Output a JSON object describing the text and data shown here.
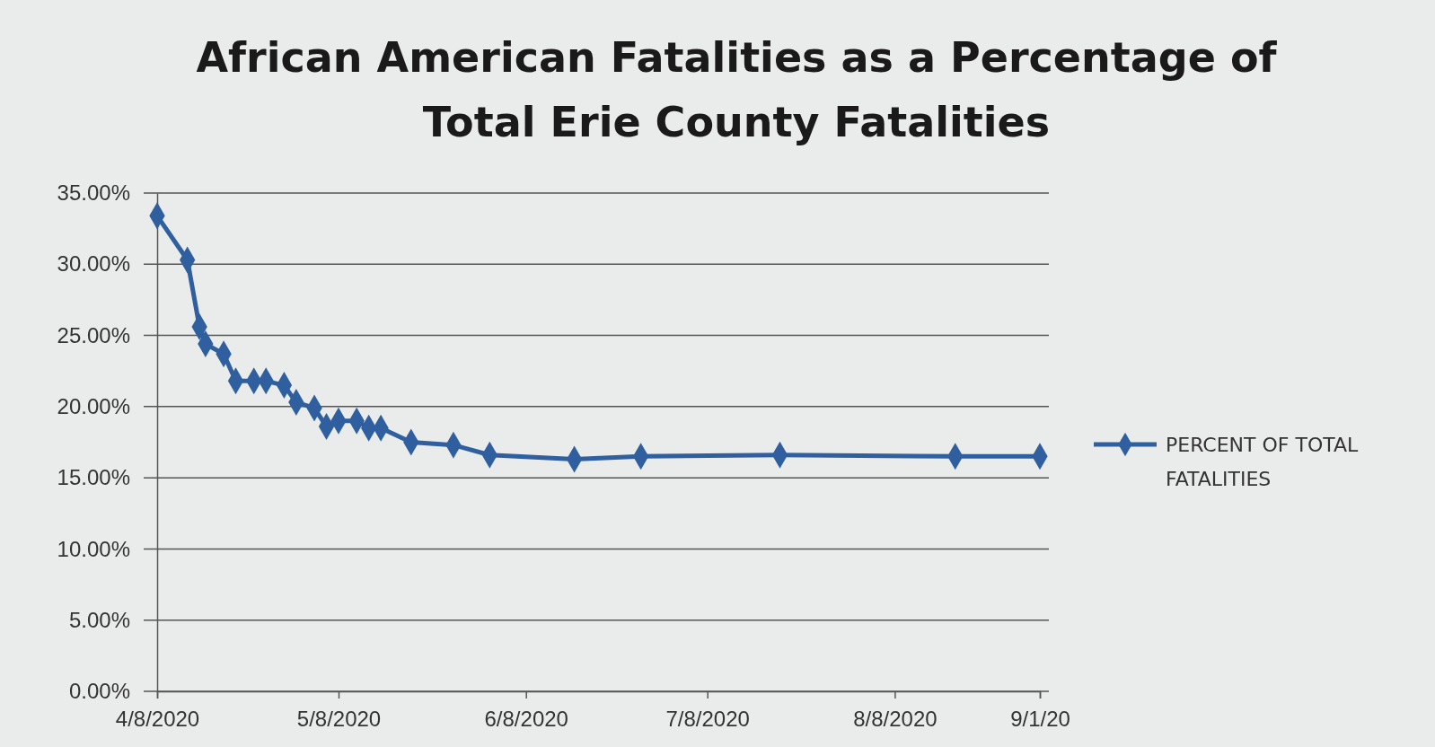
{
  "chart_data": {
    "type": "line",
    "title": "African American Fatalities as a Percentage of Total Erie County Fatalities",
    "x": [
      "2020-04-08",
      "2020-04-13",
      "2020-04-15",
      "2020-04-16",
      "2020-04-19",
      "2020-04-21",
      "2020-04-24",
      "2020-04-26",
      "2020-04-29",
      "2020-05-01",
      "2020-05-04",
      "2020-05-06",
      "2020-05-08",
      "2020-05-11",
      "2020-05-13",
      "2020-05-15",
      "2020-05-20",
      "2020-05-27",
      "2020-06-02",
      "2020-06-16",
      "2020-06-27",
      "2020-07-20",
      "2020-08-18",
      "2020-09-01"
    ],
    "series": [
      {
        "name": "PERCENT OF TOTAL FATALITIES",
        "color": "#2f5f9f",
        "values": [
          33.4,
          30.3,
          25.6,
          24.4,
          23.7,
          21.8,
          21.8,
          21.8,
          21.5,
          20.3,
          19.9,
          18.6,
          19.0,
          19.0,
          18.5,
          18.5,
          17.5,
          17.3,
          16.6,
          16.3,
          16.5,
          16.6,
          16.5,
          16.5
        ]
      }
    ],
    "xlim": [
      "2020-04-08",
      "2020-09-01"
    ],
    "xticks": [
      {
        "value": "2020-04-08",
        "label": "4/8/2020"
      },
      {
        "value": "2020-05-08",
        "label": "5/8/2020"
      },
      {
        "value": "2020-06-08",
        "label": "6/8/2020"
      },
      {
        "value": "2020-07-08",
        "label": "7/8/2020"
      },
      {
        "value": "2020-08-08",
        "label": "8/8/2020"
      },
      {
        "value": "2020-09-01",
        "label": "9/1/20"
      }
    ],
    "ylim": [
      0,
      35
    ],
    "yticks": [
      {
        "value": 0,
        "label": "0.00%"
      },
      {
        "value": 5,
        "label": "5.00%"
      },
      {
        "value": 10,
        "label": "10.00%"
      },
      {
        "value": 15,
        "label": "15.00%"
      },
      {
        "value": 20,
        "label": "20.00%"
      },
      {
        "value": 25,
        "label": "25.00%"
      },
      {
        "value": 30,
        "label": "30.00%"
      },
      {
        "value": 35,
        "label": "35.00%"
      }
    ],
    "grid": "y",
    "legend": "right",
    "marker": "diamond",
    "line_style": "solid"
  }
}
